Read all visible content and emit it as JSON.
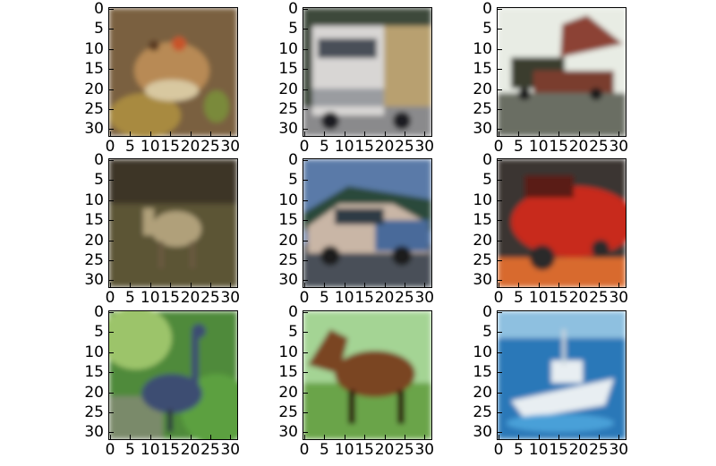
{
  "figure": {
    "axis_ticks": {
      "y": [
        "0",
        "5",
        "10",
        "15",
        "20",
        "25",
        "30"
      ],
      "x": [
        "0",
        "5",
        "10",
        "15",
        "20",
        "25",
        "30"
      ]
    },
    "panels": [
      {
        "content": "frog",
        "colors": {
          "bg": "#7a6040",
          "subject": "#b88a55",
          "accent": "#c8542a"
        }
      },
      {
        "content": "truck",
        "colors": {
          "bg": "#3d4a3a",
          "subject": "#d8d6d4",
          "accent": "#b8a070"
        }
      },
      {
        "content": "truck",
        "colors": {
          "bg": "#e8ece4",
          "subject": "#8c4234",
          "accent": "#3a3e2e"
        }
      },
      {
        "content": "deer",
        "colors": {
          "bg": "#5c5436",
          "subject": "#b0a07a",
          "accent": "#3e3626"
        }
      },
      {
        "content": "car",
        "colors": {
          "bg": "#5a7aa8",
          "subject": "#c9b6a6",
          "accent": "#2e3b45"
        }
      },
      {
        "content": "car",
        "colors": {
          "bg": "#3a3530",
          "subject": "#c82a1c",
          "accent": "#d86a2e"
        }
      },
      {
        "content": "bird",
        "colors": {
          "bg": "#4f8a3a",
          "subject": "#3e4e72",
          "accent": "#9cc46a"
        }
      },
      {
        "content": "horse",
        "colors": {
          "bg": "#a4d494",
          "subject": "#7a4424",
          "accent": "#2e1c10"
        }
      },
      {
        "content": "ship",
        "colors": {
          "bg": "#2a78b8",
          "subject": "#e8eef2",
          "accent": "#4aa0d8"
        }
      }
    ]
  }
}
